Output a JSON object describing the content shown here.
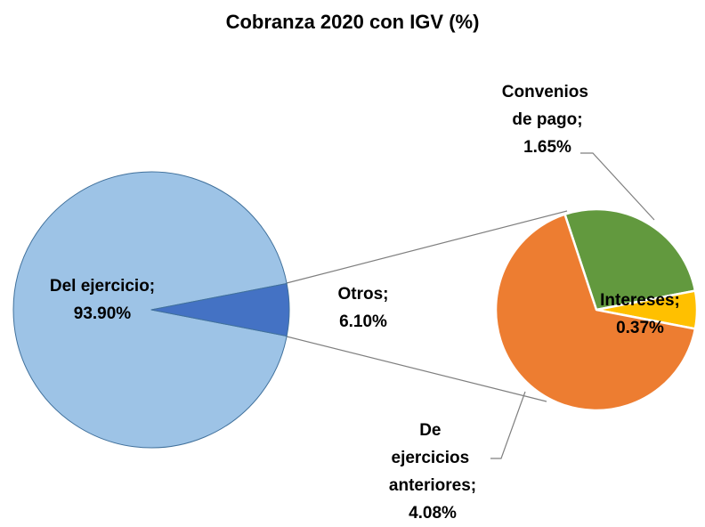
{
  "chart_data": {
    "type": "pie",
    "title": "Cobranza 2020 con IGV (%)",
    "categories": [
      "Del ejercicio;",
      "Otros;"
    ],
    "values": [
      93.9,
      6.1
    ],
    "value_labels": [
      "93.90%",
      "6.10%"
    ],
    "colors": [
      "#9dc3e6",
      "#4472c4"
    ],
    "sub": {
      "categories": [
        "Convenios de pago;",
        "Intereses;",
        "De ejercicios anteriores;"
      ],
      "values": [
        1.65,
        0.37,
        4.08
      ],
      "value_labels": [
        "1.65%",
        "0.37%",
        "4.08%"
      ],
      "colors": [
        "#62993e",
        "#ffc000",
        "#ed7d31"
      ]
    }
  }
}
